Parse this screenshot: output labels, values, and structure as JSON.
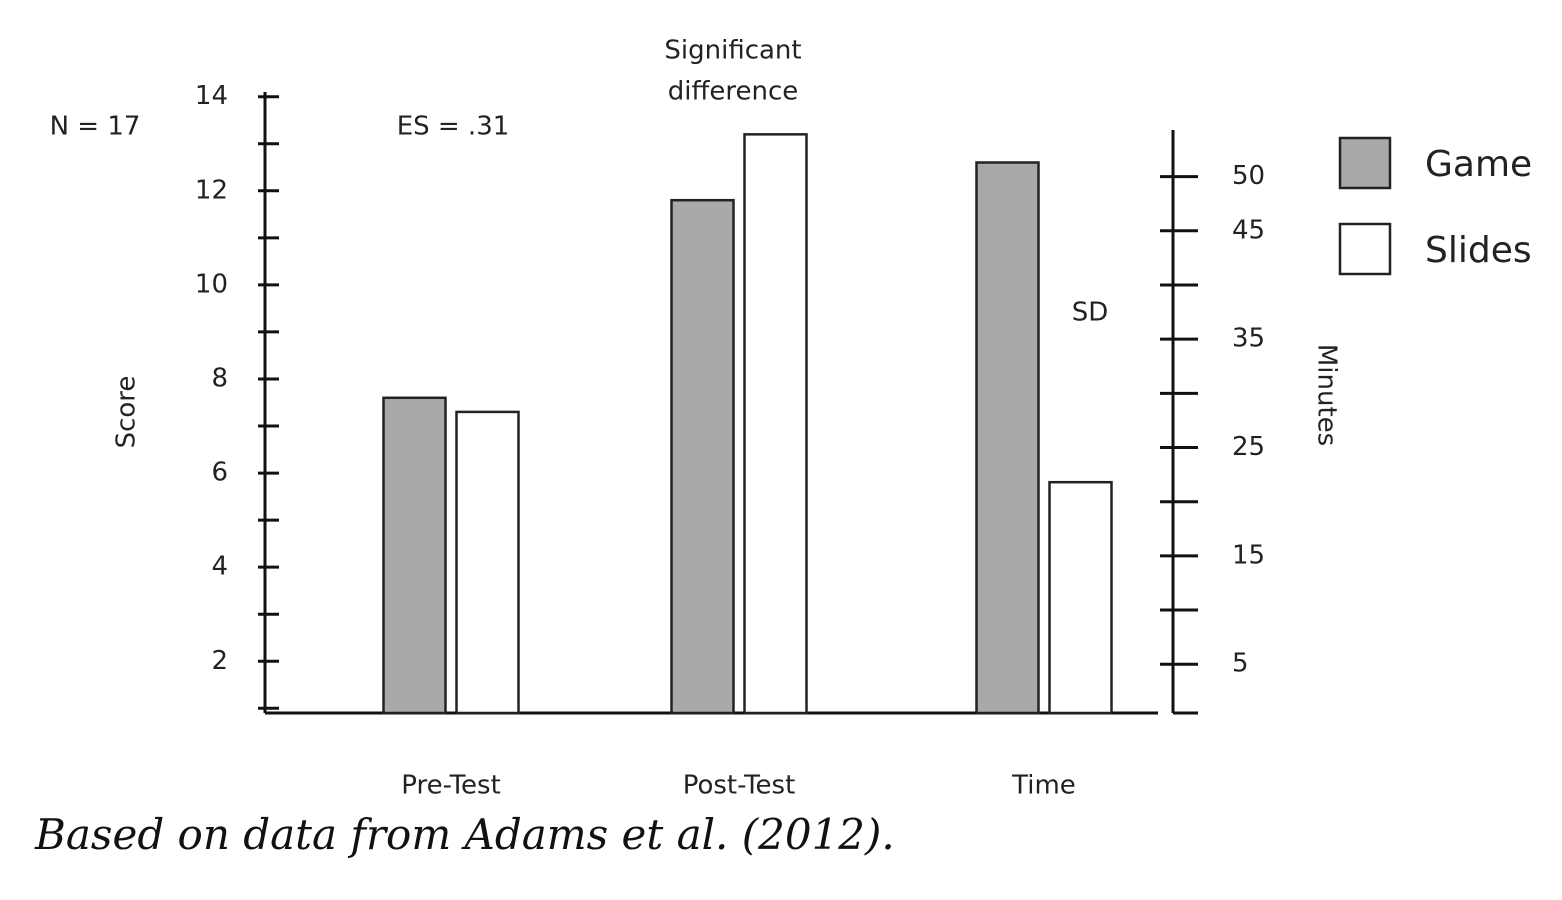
{
  "chart_data": {
    "type": "bar",
    "categories": [
      "Pre-Test",
      "Post-Test",
      "Time"
    ],
    "category_axis": [
      "y",
      "y",
      "y2"
    ],
    "series": [
      {
        "name": "Game",
        "color": "#a9a9ab",
        "values": [
          7.6,
          11.8,
          51.3
        ]
      },
      {
        "name": "Slides",
        "color": "#ffffff",
        "values": [
          7.3,
          13.2,
          21.8
        ]
      }
    ],
    "ylabel": "Score",
    "y2label": "Minutes",
    "ylim": [
      0.9,
      14.1
    ],
    "yticks": [
      2,
      4,
      6,
      8,
      10,
      12,
      14
    ],
    "yminorticks": [
      1,
      3,
      5,
      7,
      9,
      11,
      13
    ],
    "y2lim": [
      0.5,
      54.3
    ],
    "y2ticks": [
      5,
      15,
      25,
      35,
      45,
      50
    ],
    "y2minorticks": [
      10,
      20,
      30,
      40
    ],
    "annotations": {
      "n": "N = 17",
      "es": "ES = .31",
      "significance": [
        "Significant",
        "difference"
      ],
      "sd": "SD"
    },
    "caption": "Based on data from Adams et al. (2012).",
    "legend": "right"
  }
}
